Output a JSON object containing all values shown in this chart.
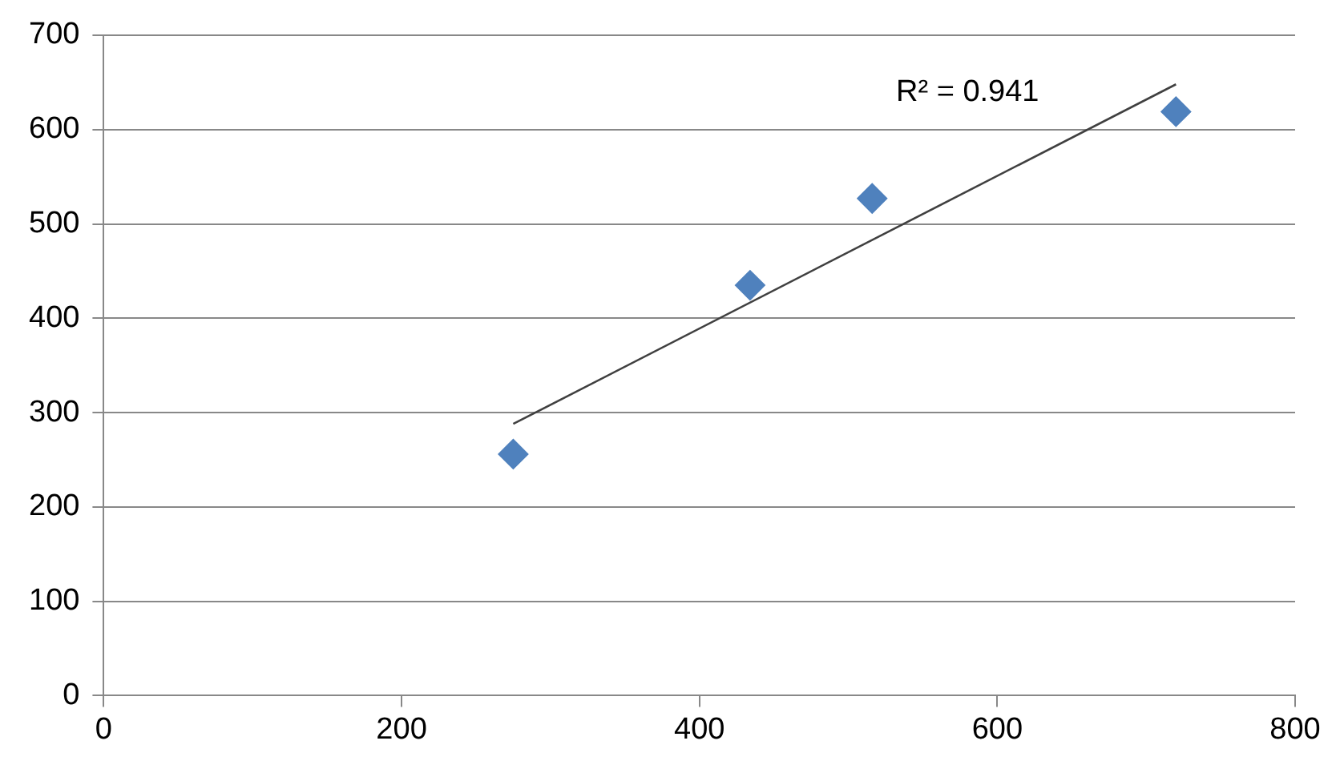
{
  "chart_data": {
    "type": "scatter",
    "xlim": [
      0,
      800
    ],
    "xticks": [
      0,
      200,
      400,
      600,
      800
    ],
    "ylim": [
      0,
      700
    ],
    "yticks": [
      0,
      100,
      200,
      300,
      400,
      500,
      600,
      700
    ],
    "grid": "y",
    "series": [
      {
        "type": "scatter",
        "marker": "diamond",
        "color": "#4f81bd",
        "x": [
          275,
          434,
          516,
          720
        ],
        "values": [
          256,
          435,
          527,
          619
        ]
      },
      {
        "type": "line",
        "color": "#404040",
        "x": [
          275,
          720
        ],
        "values": [
          288,
          648
        ]
      }
    ],
    "annotations": [
      "R² = 0.941"
    ]
  }
}
